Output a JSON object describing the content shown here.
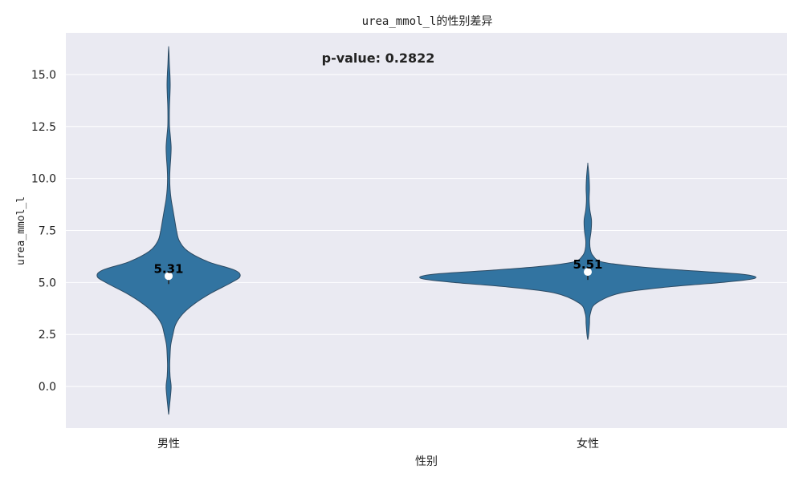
{
  "chart_data": {
    "type": "violin",
    "title": "urea_mmol_l的性别差异",
    "xlabel": "性别",
    "ylabel": "urea_mmol_l",
    "categories": [
      "男性",
      "女性"
    ],
    "ylim": [
      -2.0,
      17.0
    ],
    "yticks": [
      0.0,
      2.5,
      5.0,
      7.5,
      10.0,
      12.5,
      15.0
    ],
    "ytick_labels": [
      "0.0",
      "2.5",
      "5.0",
      "7.5",
      "10.0",
      "12.5",
      "15.0"
    ],
    "grid": true,
    "annotation": "p-value: 0.2822",
    "series": [
      {
        "category": "男性",
        "mean": 5.31,
        "mean_label": "5.31",
        "marker_y": 5.31,
        "min": -1.35,
        "max": 16.3,
        "density": [
          [
            -1.35,
            0.0
          ],
          [
            -1.0,
            0.01
          ],
          [
            -0.5,
            0.025
          ],
          [
            0.0,
            0.035
          ],
          [
            0.5,
            0.02
          ],
          [
            1.0,
            0.015
          ],
          [
            1.5,
            0.02
          ],
          [
            2.0,
            0.03
          ],
          [
            2.5,
            0.06
          ],
          [
            3.0,
            0.1
          ],
          [
            3.5,
            0.2
          ],
          [
            4.0,
            0.37
          ],
          [
            4.5,
            0.6
          ],
          [
            5.0,
            0.88
          ],
          [
            5.3,
            1.0
          ],
          [
            5.6,
            0.92
          ],
          [
            6.0,
            0.55
          ],
          [
            6.5,
            0.27
          ],
          [
            7.0,
            0.15
          ],
          [
            7.5,
            0.11
          ],
          [
            8.0,
            0.085
          ],
          [
            8.5,
            0.06
          ],
          [
            9.0,
            0.035
          ],
          [
            9.5,
            0.02
          ],
          [
            10.0,
            0.015
          ],
          [
            10.5,
            0.02
          ],
          [
            11.0,
            0.03
          ],
          [
            11.5,
            0.035
          ],
          [
            12.0,
            0.025
          ],
          [
            12.5,
            0.012
          ],
          [
            13.0,
            0.01
          ],
          [
            13.5,
            0.012
          ],
          [
            14.0,
            0.018
          ],
          [
            14.5,
            0.022
          ],
          [
            15.0,
            0.018
          ],
          [
            15.5,
            0.01
          ],
          [
            16.0,
            0.005
          ],
          [
            16.3,
            0.0
          ]
        ]
      },
      {
        "category": "女性",
        "mean": 5.51,
        "mean_label": "5.51",
        "marker_y": 5.51,
        "min": 2.25,
        "max": 10.7,
        "density": [
          [
            2.25,
            0.0
          ],
          [
            2.5,
            0.005
          ],
          [
            3.0,
            0.01
          ],
          [
            3.5,
            0.015
          ],
          [
            4.0,
            0.05
          ],
          [
            4.5,
            0.2
          ],
          [
            4.8,
            0.5
          ],
          [
            5.0,
            0.8
          ],
          [
            5.2,
            1.0
          ],
          [
            5.4,
            0.92
          ],
          [
            5.6,
            0.55
          ],
          [
            5.8,
            0.25
          ],
          [
            6.0,
            0.08
          ],
          [
            6.3,
            0.03
          ],
          [
            6.6,
            0.015
          ],
          [
            7.0,
            0.012
          ],
          [
            7.5,
            0.02
          ],
          [
            8.0,
            0.022
          ],
          [
            8.5,
            0.012
          ],
          [
            9.0,
            0.008
          ],
          [
            9.5,
            0.01
          ],
          [
            10.0,
            0.008
          ],
          [
            10.4,
            0.004
          ],
          [
            10.7,
            0.0
          ]
        ]
      }
    ]
  },
  "colors": {
    "plot_bg": "#eaeaf2",
    "grid": "#ffffff",
    "violin_fill": "#3274a1",
    "violin_edge": "#2c4a63",
    "marker": "#ffffff"
  }
}
